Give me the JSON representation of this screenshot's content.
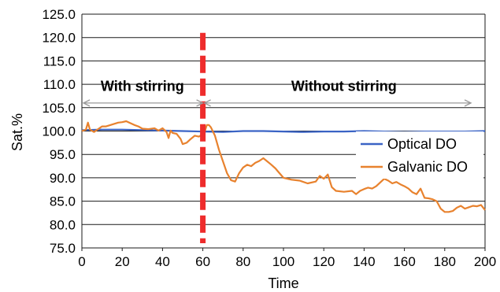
{
  "chart_data": {
    "type": "line",
    "title": "",
    "xlabel": "Time",
    "ylabel": "Sat.%",
    "xlim": [
      0,
      200
    ],
    "ylim": [
      75,
      125
    ],
    "x_ticks": [
      0,
      20,
      40,
      60,
      80,
      100,
      120,
      140,
      160,
      180,
      200
    ],
    "y_ticks": [
      "75.0",
      "80.0",
      "85.0",
      "90.0",
      "95.0",
      "100.0",
      "105.0",
      "110.0",
      "115.0",
      "120.0",
      "125.0"
    ],
    "grid": "horizontal",
    "legend_position": "right",
    "series": [
      {
        "name": "Optical DO",
        "color": "#3a63c5",
        "x": [
          0,
          10,
          20,
          30,
          40,
          50,
          60,
          70,
          80,
          90,
          100,
          110,
          120,
          130,
          140,
          150,
          160,
          170,
          180,
          190,
          200
        ],
        "y": [
          100.2,
          100.3,
          100.3,
          100.2,
          100.1,
          100.0,
          99.9,
          99.8,
          100.0,
          100.0,
          99.9,
          99.8,
          99.9,
          99.9,
          100.0,
          99.9,
          99.8,
          99.9,
          99.9,
          99.9,
          100.0
        ]
      },
      {
        "name": "Galvanic DO",
        "color": "#e8822e",
        "x": [
          0,
          2,
          3,
          4,
          6,
          8,
          10,
          12,
          15,
          18,
          20,
          22,
          24,
          26,
          28,
          30,
          33,
          36,
          38,
          40,
          42,
          43,
          44,
          45,
          47,
          49,
          50,
          52,
          54,
          56,
          58,
          60,
          61,
          62,
          63,
          64,
          66,
          68,
          70,
          72,
          74,
          76,
          78,
          80,
          82,
          84,
          86,
          88,
          90,
          92,
          94,
          96,
          98,
          100,
          104,
          108,
          112,
          116,
          118,
          120,
          122,
          124,
          126,
          130,
          134,
          136,
          138,
          140,
          142,
          144,
          146,
          148,
          150,
          152,
          154,
          156,
          158,
          160,
          162,
          164,
          166,
          168,
          170,
          172,
          174,
          176,
          178,
          180,
          182,
          184,
          186,
          188,
          190,
          192,
          194,
          196,
          198,
          200
        ],
        "y": [
          100.0,
          100.3,
          101.8,
          100.3,
          99.8,
          100.4,
          101.0,
          101.0,
          101.4,
          101.8,
          101.9,
          102.1,
          101.7,
          101.3,
          101.0,
          100.5,
          100.4,
          100.6,
          100.1,
          100.6,
          99.8,
          98.5,
          100.1,
          99.6,
          99.4,
          98.3,
          97.2,
          97.5,
          98.3,
          99.0,
          98.8,
          99.3,
          100.0,
          101.3,
          101.3,
          100.8,
          99.0,
          96.0,
          93.5,
          91.0,
          89.5,
          89.2,
          91.0,
          92.2,
          92.8,
          92.5,
          93.2,
          93.6,
          94.2,
          93.5,
          92.8,
          92.0,
          91.0,
          90.0,
          89.6,
          89.4,
          88.8,
          89.2,
          90.4,
          89.8,
          90.7,
          88.0,
          87.2,
          87.0,
          87.2,
          86.5,
          87.2,
          87.6,
          87.9,
          87.7,
          88.2,
          89.0,
          89.8,
          89.4,
          88.8,
          89.1,
          88.6,
          88.2,
          87.7,
          86.9,
          86.5,
          87.7,
          85.7,
          85.6,
          85.4,
          85.0,
          83.4,
          82.7,
          82.7,
          82.9,
          83.6,
          84.0,
          83.4,
          83.7,
          84.0,
          83.9,
          84.2,
          83.1
        ]
      }
    ],
    "annotations": [
      {
        "name": "stirring-boundary",
        "x": 60,
        "color": "#ee2c2c"
      },
      {
        "text": "With stirring",
        "x_range": [
          0,
          60
        ],
        "y": 109.8
      },
      {
        "text": "Without stirring",
        "x_range": [
          60,
          200
        ],
        "y": 109.8
      },
      {
        "name": "with-stirring-arrow",
        "x_range": [
          0,
          60
        ],
        "y": 106.0,
        "color": "#999999"
      },
      {
        "name": "without-stirring-arrow",
        "x_range": [
          60,
          193
        ],
        "y": 106.0,
        "color": "#999999"
      }
    ]
  }
}
